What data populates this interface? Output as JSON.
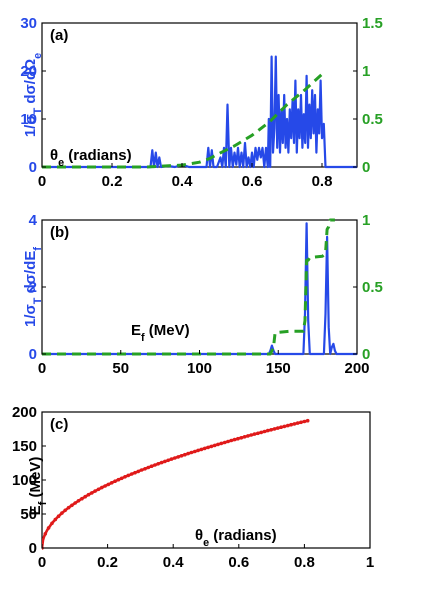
{
  "chart_data": [
    {
      "id": "a",
      "type": "line",
      "panel_label": "(a)",
      "xlabel": "θe (radians)",
      "ylabel_left": "1/σT dσ/dΩe",
      "xlim": [
        0,
        0.9
      ],
      "ylim_left": [
        0,
        30
      ],
      "ylim_right": [
        0,
        1.5
      ],
      "xticks": [
        0,
        0.2,
        0.4,
        0.6,
        0.8
      ],
      "xtick_labels": [
        "0",
        "0.2",
        "0.4",
        "0.6",
        "0.8"
      ],
      "yticks_left": [
        0,
        10,
        20,
        30
      ],
      "ytick_labels_left": [
        "0",
        "10",
        "20",
        "30"
      ],
      "yticks_right": [
        0,
        0.5,
        1,
        1.5
      ],
      "ytick_labels_right": [
        "0",
        "0.5",
        "1",
        "1.5"
      ],
      "series": [
        {
          "axis": "left",
          "color": "#2649e8",
          "style": "solid",
          "x": [
            0.0,
            0.3,
            0.31,
            0.315,
            0.32,
            0.325,
            0.33,
            0.335,
            0.34,
            0.36,
            0.38,
            0.4,
            0.42,
            0.45,
            0.47,
            0.475,
            0.48,
            0.485,
            0.49,
            0.5,
            0.51,
            0.515,
            0.52,
            0.525,
            0.53,
            0.535,
            0.54,
            0.545,
            0.55,
            0.555,
            0.56,
            0.565,
            0.57,
            0.575,
            0.58,
            0.585,
            0.59,
            0.595,
            0.6,
            0.605,
            0.61,
            0.615,
            0.62,
            0.625,
            0.63,
            0.635,
            0.64,
            0.645,
            0.648,
            0.652,
            0.656,
            0.66,
            0.664,
            0.668,
            0.672,
            0.676,
            0.68,
            0.684,
            0.688,
            0.692,
            0.696,
            0.7,
            0.704,
            0.708,
            0.712,
            0.716,
            0.72,
            0.724,
            0.728,
            0.732,
            0.736,
            0.74,
            0.744,
            0.748,
            0.752,
            0.756,
            0.76,
            0.764,
            0.768,
            0.772,
            0.776,
            0.78,
            0.784,
            0.788,
            0.792,
            0.796,
            0.8,
            0.805,
            0.81,
            0.9
          ],
          "y": [
            0,
            0,
            0,
            3.5,
            0,
            3,
            0,
            2,
            0,
            0.2,
            0,
            0.5,
            0,
            0,
            0,
            4,
            0,
            3.5,
            0,
            0,
            2,
            0,
            4,
            0,
            13,
            0,
            4,
            0,
            3,
            0.5,
            4,
            0,
            3,
            0,
            5,
            0,
            2,
            0,
            3,
            0,
            4,
            1.5,
            4,
            2,
            4,
            0,
            4,
            0,
            10,
            0,
            23,
            3,
            8,
            23,
            4,
            15,
            3,
            12,
            5,
            15,
            4,
            10,
            3,
            12,
            6,
            14,
            5,
            18,
            3,
            12,
            6,
            15,
            4,
            11,
            5,
            19,
            4,
            13,
            6,
            16,
            7,
            15,
            3,
            12,
            7,
            18,
            6,
            9,
            0,
            0
          ]
        },
        {
          "axis": "right",
          "color": "#27a025",
          "style": "dashed",
          "x": [
            0.0,
            0.3,
            0.35,
            0.4,
            0.45,
            0.48,
            0.5,
            0.55,
            0.6,
            0.65,
            0.7,
            0.75,
            0.81
          ],
          "y": [
            0,
            0,
            0.01,
            0.02,
            0.05,
            0.09,
            0.13,
            0.22,
            0.33,
            0.47,
            0.65,
            0.8,
            1.0
          ]
        }
      ]
    },
    {
      "id": "b",
      "type": "line",
      "panel_label": "(b)",
      "xlabel": "Ef (MeV)",
      "ylabel_left": "1/σT dσ/dEf",
      "xlim": [
        0,
        200
      ],
      "ylim_left": [
        0,
        4
      ],
      "ylim_right": [
        0,
        1
      ],
      "xticks": [
        0,
        50,
        100,
        150,
        200
      ],
      "xtick_labels": [
        "0",
        "50",
        "100",
        "150",
        "200"
      ],
      "yticks_left": [
        0,
        2,
        4
      ],
      "ytick_labels_left": [
        "0",
        "2",
        "4"
      ],
      "yticks_right": [
        0,
        0.5,
        1
      ],
      "ytick_labels_right": [
        "0",
        "0.5",
        "1"
      ],
      "series": [
        {
          "axis": "left",
          "color": "#2649e8",
          "style": "solid",
          "x": [
            0,
            144,
            145,
            146,
            147,
            148,
            166,
            167,
            168,
            169,
            170,
            179,
            180,
            181,
            182,
            183,
            184,
            185,
            186,
            187,
            200
          ],
          "y": [
            0,
            0,
            0.1,
            0.25,
            0.1,
            0,
            0,
            1.2,
            3.9,
            1.0,
            0,
            0,
            1.2,
            3.5,
            0.8,
            0,
            0.2,
            0.3,
            0.1,
            0,
            0
          ],
          "x_visible_max": 187
        },
        {
          "axis": "right",
          "color": "#27a025",
          "style": "dashed",
          "x": [
            0,
            145,
            147,
            148,
            158,
            166,
            167,
            168,
            169,
            170,
            178,
            180,
            181,
            182,
            183,
            186
          ],
          "y": [
            0,
            0,
            0.05,
            0.16,
            0.17,
            0.17,
            0.25,
            0.7,
            0.7,
            0.72,
            0.73,
            0.75,
            0.93,
            0.95,
            1.0,
            1.0
          ]
        }
      ]
    },
    {
      "id": "c",
      "type": "scatter",
      "panel_label": "(c)",
      "xlabel": "θe (radians)",
      "ylabel": "Ef (MeV)",
      "xlim": [
        0,
        1
      ],
      "ylim": [
        0,
        200
      ],
      "xticks": [
        0,
        0.2,
        0.4,
        0.6,
        0.8,
        1
      ],
      "xtick_labels": [
        "0",
        "0.2",
        "0.4",
        "0.6",
        "0.8",
        "1"
      ],
      "yticks": [
        0,
        50,
        100,
        150,
        200
      ],
      "ytick_labels": [
        "0",
        "50",
        "100",
        "150",
        "200"
      ],
      "series": [
        {
          "color": "#e01a1a",
          "curve_coeff": 208,
          "curve_exponent": 0.5,
          "x_range": [
            0,
            0.81
          ]
        }
      ]
    }
  ]
}
